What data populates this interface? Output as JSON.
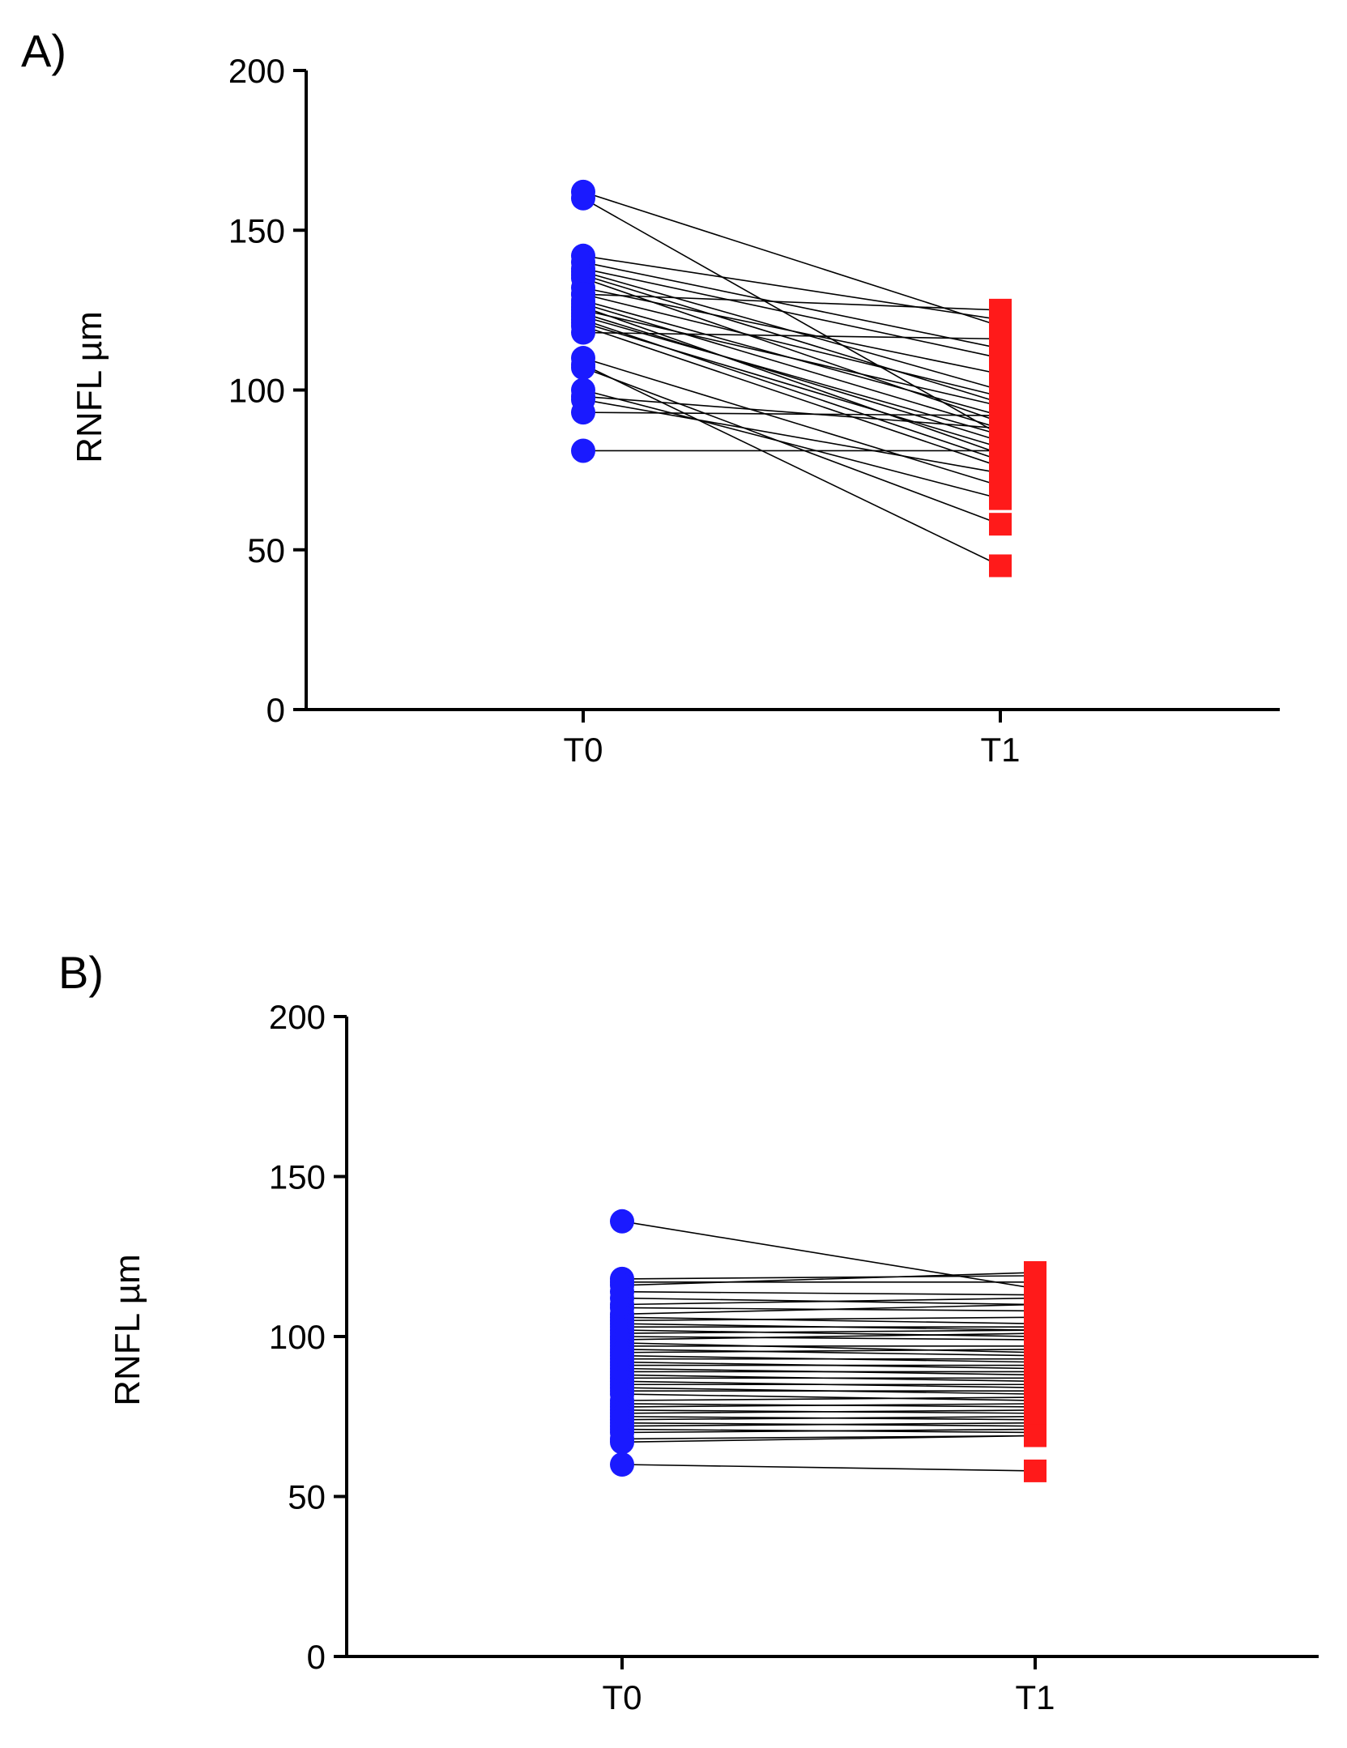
{
  "figure": {
    "panels": [
      "A)",
      "B)"
    ]
  },
  "chart_data": [
    {
      "type": "line",
      "panel": "A)",
      "title": "",
      "xlabel": "",
      "ylabel": "RNFL µm",
      "categories": [
        "T0",
        "T1"
      ],
      "ylim": [
        0,
        200
      ],
      "yticks": [
        0,
        50,
        100,
        150,
        200
      ],
      "grid": false,
      "marker_T0": "circle",
      "marker_T1": "square",
      "color_T0": "#1a1aff",
      "color_T1": "#ff1a1a",
      "pairs": [
        [
          162,
          120
        ],
        [
          160,
          86
        ],
        [
          142,
          122
        ],
        [
          140,
          113
        ],
        [
          138,
          110
        ],
        [
          137,
          100
        ],
        [
          136,
          96
        ],
        [
          135,
          90
        ],
        [
          132,
          105
        ],
        [
          130,
          98
        ],
        [
          128,
          92
        ],
        [
          127,
          88
        ],
        [
          126,
          80
        ],
        [
          125,
          95
        ],
        [
          124,
          84
        ],
        [
          123,
          86
        ],
        [
          122,
          78
        ],
        [
          121,
          82
        ],
        [
          120,
          76
        ],
        [
          110,
          70
        ],
        [
          108,
          45
        ],
        [
          107,
          58
        ],
        [
          100,
          66
        ],
        [
          98,
          88
        ],
        [
          97,
          74
        ],
        [
          93,
          92
        ],
        [
          81,
          81
        ],
        [
          130,
          125
        ],
        [
          118,
          116
        ]
      ]
    },
    {
      "type": "line",
      "panel": "B)",
      "title": "",
      "xlabel": "",
      "ylabel": "RNFL µm",
      "categories": [
        "T0",
        "T1"
      ],
      "ylim": [
        0,
        200
      ],
      "yticks": [
        0,
        50,
        100,
        150,
        200
      ],
      "grid": false,
      "marker_T0": "circle",
      "marker_T1": "square",
      "color_T0": "#1a1aff",
      "color_T1": "#ff1a1a",
      "pairs": [
        [
          136,
          115
        ],
        [
          118,
          119
        ],
        [
          117,
          117
        ],
        [
          116,
          120
        ],
        [
          114,
          113
        ],
        [
          112,
          110
        ],
        [
          110,
          112
        ],
        [
          109,
          108
        ],
        [
          107,
          110
        ],
        [
          106,
          104
        ],
        [
          105,
          106
        ],
        [
          104,
          102
        ],
        [
          103,
          103
        ],
        [
          102,
          100
        ],
        [
          101,
          102
        ],
        [
          100,
          99
        ],
        [
          99,
          101
        ],
        [
          98,
          95
        ],
        [
          97,
          97
        ],
        [
          96,
          94
        ],
        [
          95,
          96
        ],
        [
          94,
          92
        ],
        [
          93,
          93
        ],
        [
          92,
          90
        ],
        [
          91,
          91
        ],
        [
          90,
          88
        ],
        [
          89,
          89
        ],
        [
          88,
          86
        ],
        [
          87,
          87
        ],
        [
          86,
          84
        ],
        [
          85,
          85
        ],
        [
          84,
          82
        ],
        [
          83,
          83
        ],
        [
          82,
          80
        ],
        [
          80,
          81
        ],
        [
          79,
          78
        ],
        [
          78,
          79
        ],
        [
          77,
          76
        ],
        [
          76,
          77
        ],
        [
          75,
          74
        ],
        [
          74,
          75
        ],
        [
          73,
          72
        ],
        [
          72,
          73
        ],
        [
          71,
          70
        ],
        [
          70,
          71
        ],
        [
          68,
          69
        ],
        [
          67,
          69
        ],
        [
          60,
          58
        ]
      ]
    }
  ]
}
